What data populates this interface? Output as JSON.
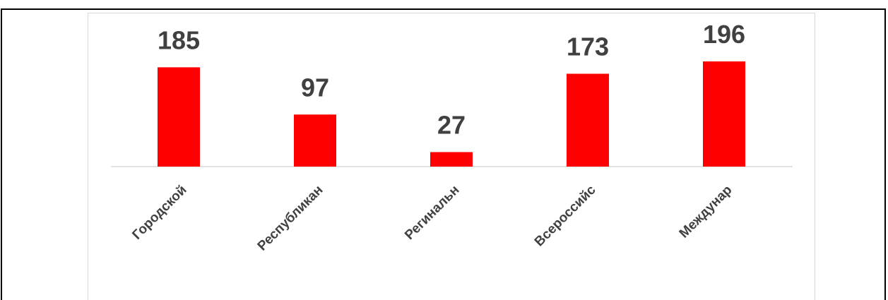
{
  "chart_data": {
    "type": "bar",
    "categories": [
      "Городской",
      "Республикан",
      "Регинальн",
      "Всероссийс",
      "Междунар"
    ],
    "values": [
      185,
      97,
      27,
      173,
      196
    ],
    "title": "",
    "xlabel": "",
    "ylabel": "",
    "ylim": [
      0,
      196
    ],
    "grid": false,
    "legend": "none",
    "data_labels": true,
    "colors": {
      "bar": "#ff0000",
      "label": "#404040",
      "axis": "#d9d9d9",
      "frame": "#000000"
    }
  }
}
